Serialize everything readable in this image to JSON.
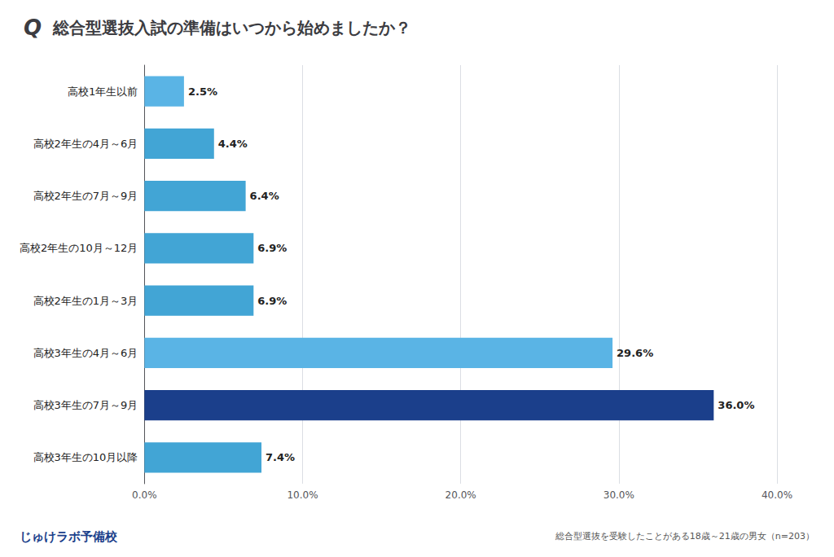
{
  "chart_data": {
    "type": "bar",
    "orientation": "horizontal",
    "title": "総合型選抜入試の準備はいつから始めましたか？",
    "annotations": [
      "Q",
      "じゅけラボ予備校",
      "総合型選抜を受験したことがある18歳～21歳の男女（n=203）"
    ],
    "categories": [
      "高校1年生以前",
      "高校2年生の4月～6月",
      "高校2年生の7月～9月",
      "高校2年生の10月～12月",
      "高校2年生の1月～3月",
      "高校3年生の4月～6月",
      "高校3年生の7月～9月",
      "高校3年生の10月以降"
    ],
    "values": [
      2.5,
      4.4,
      6.4,
      6.9,
      6.9,
      29.6,
      36.0,
      7.4
    ],
    "value_labels": [
      "2.5%",
      "4.4%",
      "6.4%",
      "6.9%",
      "6.9%",
      "29.6%",
      "36.0%",
      "7.4%"
    ],
    "data_labels": true,
    "colors": [
      "#5ab4e5",
      "#42a5d5",
      "#42a5d5",
      "#42a5d5",
      "#42a5d5",
      "#5ab4e5",
      "#1b3f8b",
      "#42a5d5"
    ],
    "xlim": [
      0,
      40
    ],
    "xticks": [
      {
        "value": 0,
        "label": "0.0%"
      },
      {
        "value": 10,
        "label": "10.0%"
      },
      {
        "value": 20,
        "label": "20.0%"
      },
      {
        "value": 30,
        "label": "30.0%"
      },
      {
        "value": 40,
        "label": "40.0%"
      }
    ],
    "grid": true
  }
}
